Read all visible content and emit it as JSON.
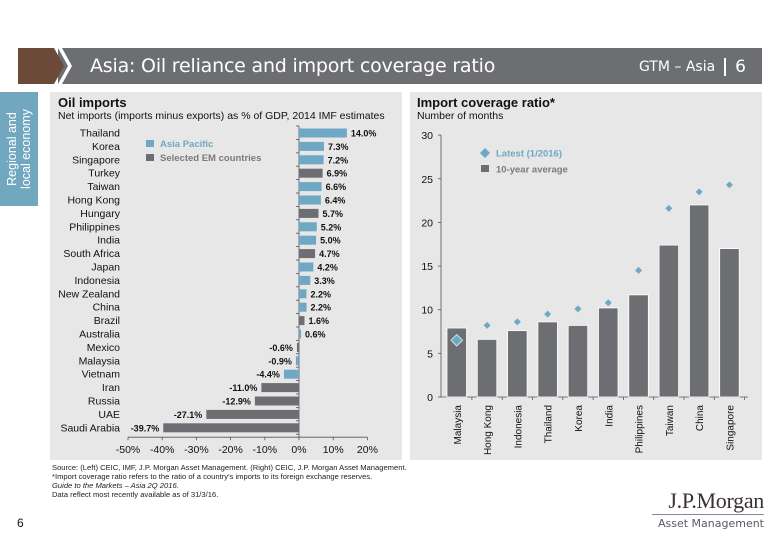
{
  "header": {
    "title": "Asia: Oil reliance and import coverage ratio",
    "section": "GTM – Asia",
    "page_number": "6",
    "colors": {
      "bar": "#6d6e71",
      "chevron": "#6b4a3a"
    }
  },
  "side_tab": {
    "line1": "Regional and",
    "line2": "local economy",
    "color": "#71a8bf"
  },
  "left_panel": {
    "title": "Oil imports",
    "subtitle": "Net imports (imports minus exports) as % of GDP, 2014 IMF estimates"
  },
  "right_panel": {
    "title": "Import coverage ratio*",
    "subtitle": "Number of months"
  },
  "chart_data": [
    {
      "type": "bar",
      "orientation": "horizontal",
      "title": "Oil imports",
      "subtitle": "Net imports (imports minus exports) as % of GDP, 2014 IMF estimates",
      "categories": [
        "Thailand",
        "Korea",
        "Singapore",
        "Turkey",
        "Taiwan",
        "Hong Kong",
        "Hungary",
        "Philippines",
        "India",
        "South Africa",
        "Japan",
        "Indonesia",
        "New Zealand",
        "China",
        "Brazil",
        "Australia",
        "Mexico",
        "Malaysia",
        "Vietnam",
        "Iran",
        "Russia",
        "UAE",
        "Saudi Arabia"
      ],
      "values": [
        14.0,
        7.3,
        7.2,
        6.9,
        6.6,
        6.4,
        5.7,
        5.2,
        5.0,
        4.7,
        4.2,
        3.3,
        2.2,
        2.2,
        1.6,
        0.6,
        -0.6,
        -0.9,
        -4.4,
        -11.0,
        -12.9,
        -27.1,
        -39.7
      ],
      "labels": [
        "14.0%",
        "7.3%",
        "7.2%",
        "6.9%",
        "6.6%",
        "6.4%",
        "5.7%",
        "5.2%",
        "5.0%",
        "4.7%",
        "4.2%",
        "3.3%",
        "2.2%",
        "2.2%",
        "1.6%",
        "0.6%",
        "-0.6%",
        "-0.9%",
        "-4.4%",
        "-11.0%",
        "-12.9%",
        "-27.1%",
        "-39.7%"
      ],
      "groups": [
        "Asia Pacific",
        "Asia Pacific",
        "Asia Pacific",
        "Selected EM countries",
        "Asia Pacific",
        "Asia Pacific",
        "Selected EM countries",
        "Asia Pacific",
        "Asia Pacific",
        "Selected EM countries",
        "Asia Pacific",
        "Asia Pacific",
        "Asia Pacific",
        "Asia Pacific",
        "Selected EM countries",
        "Asia Pacific",
        "Selected EM countries",
        "Asia Pacific",
        "Asia Pacific",
        "Selected EM countries",
        "Selected EM countries",
        "Selected EM countries",
        "Selected EM countries"
      ],
      "legend": [
        {
          "name": "Asia Pacific",
          "color": "#6fa8c4"
        },
        {
          "name": "Selected EM countries",
          "color": "#6d6e71"
        }
      ],
      "legend_position": "top-left",
      "xlim": [
        -50,
        20
      ],
      "xticks": [
        -50,
        -40,
        -30,
        -20,
        -10,
        0,
        10,
        20
      ],
      "xtick_labels": [
        "-50%",
        "-40%",
        "-30%",
        "-20%",
        "-10%",
        "0%",
        "10%",
        "20%"
      ],
      "xlabel": "",
      "ylabel": "",
      "grid": false
    },
    {
      "type": "bar",
      "title": "Import coverage ratio*",
      "subtitle": "Number of months",
      "categories": [
        "Malaysia",
        "Hong Kong",
        "Indonesia",
        "Thailand",
        "Korea",
        "India",
        "Philippines",
        "Taiwan",
        "China",
        "Singapore"
      ],
      "series": [
        {
          "name": "10-year average",
          "kind": "bar",
          "color": "#6d6e71",
          "values": [
            7.9,
            6.6,
            7.6,
            8.6,
            8.2,
            10.2,
            11.7,
            17.4,
            22.0,
            17.0
          ]
        },
        {
          "name": "Latest (1/2016)",
          "kind": "marker-diamond",
          "color": "#6fa8c4",
          "values": [
            6.5,
            8.2,
            8.6,
            9.5,
            10.1,
            10.8,
            14.5,
            21.6,
            23.5,
            24.3
          ]
        }
      ],
      "legend": [
        {
          "name": "Latest (1/2016)",
          "marker": "diamond",
          "color": "#6fa8c4"
        },
        {
          "name": "10-year average",
          "marker": "square",
          "color": "#6d6e71"
        }
      ],
      "legend_position": "top-left",
      "ylim": [
        0,
        30
      ],
      "yticks": [
        0,
        5,
        10,
        15,
        20,
        25,
        30
      ],
      "ytick_labels": [
        "0",
        "5",
        "10",
        "15",
        "20",
        "25",
        "30"
      ],
      "xlabel": "",
      "ylabel": "",
      "grid": false
    }
  ],
  "footnotes": {
    "source": "Source: (Left) CEIC, IMF, J.P. Morgan Asset Management. (Right) CEIC, J.P. Morgan Asset Management.",
    "note": "*Import coverage ratio refers to the ratio of a country’s imports to its foreign exchange reserves.",
    "guide": "Guide to the Markets – Asia 2Q 2016.",
    "data_as_of": "Data reflect most recently available as of 31/3/16."
  },
  "page_number": "6",
  "logo": {
    "main": "J.P.Morgan",
    "sub": "Asset Management"
  }
}
